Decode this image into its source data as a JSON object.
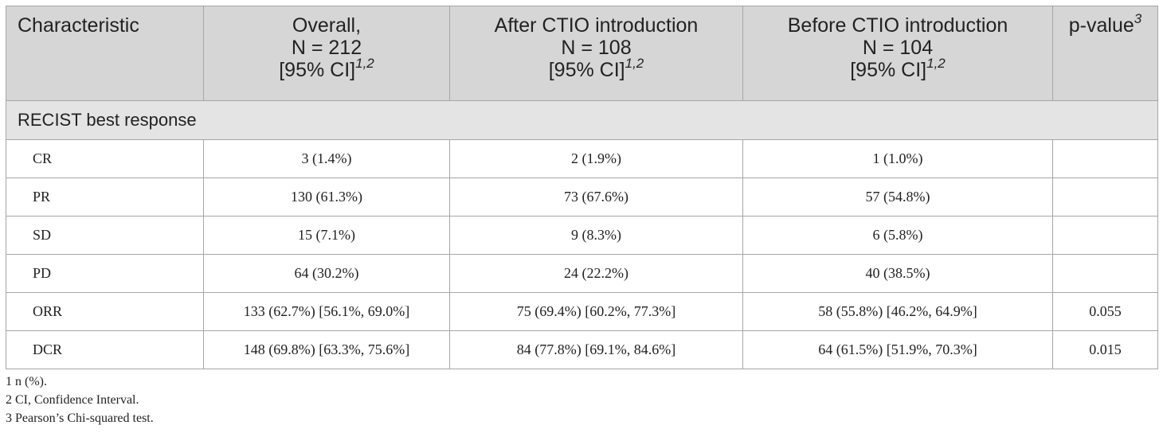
{
  "table": {
    "headers": [
      {
        "lines": [
          "Characteristic"
        ],
        "sup": ""
      },
      {
        "lines": [
          "Overall,",
          "N = 212",
          "[95% CI]"
        ],
        "sup": "1,2"
      },
      {
        "lines": [
          "After CTIO introduction",
          "N = 108",
          "[95% CI]"
        ],
        "sup": "1,2"
      },
      {
        "lines": [
          "Before CTIO introduction",
          "N = 104",
          "[95% CI]"
        ],
        "sup": "1,2"
      },
      {
        "lines": [
          "p-value"
        ],
        "sup": "3"
      }
    ],
    "section_label": "RECIST best response",
    "rows": [
      {
        "label": "CR",
        "overall": "3 (1.4%)",
        "after": "2 (1.9%)",
        "before": "1 (1.0%)",
        "p": ""
      },
      {
        "label": "PR",
        "overall": "130 (61.3%)",
        "after": "73 (67.6%)",
        "before": "57 (54.8%)",
        "p": ""
      },
      {
        "label": "SD",
        "overall": "15 (7.1%)",
        "after": "9 (8.3%)",
        "before": "6 (5.8%)",
        "p": ""
      },
      {
        "label": "PD",
        "overall": "64 (30.2%)",
        "after": "24 (22.2%)",
        "before": "40 (38.5%)",
        "p": ""
      },
      {
        "label": "ORR",
        "overall": "133 (62.7%) [56.1%, 69.0%]",
        "after": "75 (69.4%) [60.2%, 77.3%]",
        "before": "58 (55.8%) [46.2%, 64.9%]",
        "p": "0.055"
      },
      {
        "label": "DCR",
        "overall": "148 (69.8%) [63.3%, 75.6%]",
        "after": "84 (77.8%) [69.1%, 84.6%]",
        "before": "64 (61.5%) [51.9%, 70.3%]",
        "p": "0.015"
      }
    ]
  },
  "footnotes": [
    "1 n (%).",
    "2 CI, Confidence Interval.",
    "3 Pearson’s Chi-squared test."
  ]
}
